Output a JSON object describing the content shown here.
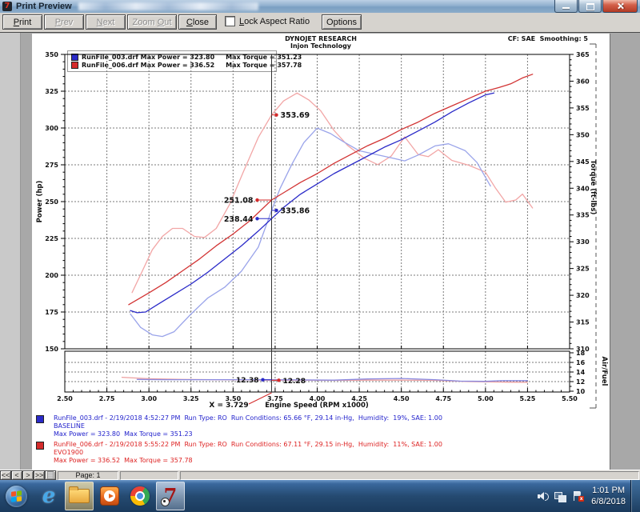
{
  "window": {
    "title": "Print Preview"
  },
  "toolbar": {
    "buttons": [
      {
        "label": "Print",
        "accel": "P",
        "disabled": false
      },
      {
        "label": "Prev",
        "accel": "P",
        "disabled": true
      },
      {
        "label": "Next",
        "accel": "N",
        "disabled": true
      },
      {
        "label": "Zoom Out",
        "accel": "O",
        "disabled": true
      },
      {
        "label": "Close",
        "accel": "C",
        "disabled": false
      },
      {
        "label": "Options",
        "accel": "O",
        "disabled": false
      }
    ],
    "lock_aspect_ratio_label": "Lock Aspect Ratio",
    "lock_aspect_ratio_checked": false
  },
  "report": {
    "header_line1": "DYNOJET RESEARCH",
    "header_line2": "Injon Technology",
    "corner_note": "CF: SAE  Smoothing: 5"
  },
  "legend": {
    "rows": [
      {
        "color": "#2a2ac8",
        "text": "RunFile_003.drf Max Power = 323.80     Max Torque = 351.23"
      },
      {
        "color": "#d42b2b",
        "text": "RunFile_006.drf Max Power = 336.52     Max Torque = 357.78"
      }
    ]
  },
  "chart_data": {
    "type": "line",
    "title": "DYNOJET RESEARCH",
    "xlabel": "Engine Speed (RPM x1000)",
    "ylabel_left": "Power (hp)",
    "ylabel_right": "Torque (ft-lbs)",
    "ylabel_af": "Air/Fuel",
    "xlim": [
      2.5,
      5.5
    ],
    "power_lim": [
      150,
      350
    ],
    "torque_lim": [
      310,
      365
    ],
    "af_lim": [
      10,
      18
    ],
    "grid": true,
    "x_ticks": [
      "2.50",
      "2.75",
      "3.00",
      "3.25",
      "3.50",
      "3.75",
      "4.00",
      "4.25",
      "4.50",
      "4.75",
      "5.00",
      "5.25",
      "5.50"
    ],
    "power_ticks": [
      150,
      175,
      200,
      225,
      250,
      275,
      300,
      325,
      350
    ],
    "torque_ticks": [
      310,
      315,
      320,
      325,
      330,
      335,
      340,
      345,
      350,
      355,
      360,
      365
    ],
    "af_ticks": [
      10,
      12,
      14,
      16,
      18
    ],
    "cursor": {
      "rpm": 3.729,
      "label": "X = 3.729"
    },
    "series": [
      {
        "name": "RunFile_006 Torque",
        "axis": "torque",
        "color": "#f2a6a6",
        "points": [
          [
            2.9,
            320.5
          ],
          [
            2.96,
            324.5
          ],
          [
            3.02,
            328.5
          ],
          [
            3.08,
            331.0
          ],
          [
            3.14,
            332.5
          ],
          [
            3.2,
            332.5
          ],
          [
            3.27,
            331.0
          ],
          [
            3.33,
            330.8
          ],
          [
            3.4,
            332.5
          ],
          [
            3.48,
            337.0
          ],
          [
            3.56,
            343.0
          ],
          [
            3.65,
            349.5
          ],
          [
            3.729,
            353.69
          ],
          [
            3.8,
            356.3
          ],
          [
            3.88,
            357.78
          ],
          [
            3.95,
            356.5
          ],
          [
            4.02,
            354.5
          ],
          [
            4.1,
            350.8
          ],
          [
            4.18,
            348.0
          ],
          [
            4.28,
            345.6
          ],
          [
            4.36,
            344.4
          ],
          [
            4.44,
            346.0
          ],
          [
            4.52,
            349.6
          ],
          [
            4.6,
            346.3
          ],
          [
            4.66,
            345.9
          ],
          [
            4.72,
            347.2
          ],
          [
            4.8,
            345.2
          ],
          [
            4.9,
            344.3
          ],
          [
            5.0,
            343.0
          ],
          [
            5.06,
            340.0
          ],
          [
            5.12,
            337.4
          ],
          [
            5.18,
            337.8
          ],
          [
            5.22,
            338.9
          ],
          [
            5.28,
            336.3
          ]
        ]
      },
      {
        "name": "RunFile_003 Torque",
        "axis": "torque",
        "color": "#9aa4ea",
        "points": [
          [
            2.89,
            316.5
          ],
          [
            2.95,
            314.0
          ],
          [
            3.02,
            312.6
          ],
          [
            3.08,
            312.3
          ],
          [
            3.15,
            313.2
          ],
          [
            3.25,
            316.5
          ],
          [
            3.35,
            319.5
          ],
          [
            3.45,
            321.5
          ],
          [
            3.55,
            324.5
          ],
          [
            3.65,
            329.0
          ],
          [
            3.729,
            335.86
          ],
          [
            3.78,
            340.0
          ],
          [
            3.85,
            344.5
          ],
          [
            3.92,
            348.5
          ],
          [
            4.0,
            351.23
          ],
          [
            4.08,
            350.2
          ],
          [
            4.15,
            348.8
          ],
          [
            4.25,
            347.0
          ],
          [
            4.35,
            346.3
          ],
          [
            4.45,
            345.6
          ],
          [
            4.52,
            345.1
          ],
          [
            4.6,
            346.2
          ],
          [
            4.7,
            347.9
          ],
          [
            4.78,
            348.3
          ],
          [
            4.88,
            347.0
          ],
          [
            4.95,
            344.8
          ],
          [
            5.03,
            340.4
          ]
        ]
      },
      {
        "name": "RunFile_006 Power",
        "axis": "power",
        "color": "#d23434",
        "points": [
          [
            2.88,
            180
          ],
          [
            3.0,
            188
          ],
          [
            3.1,
            195
          ],
          [
            3.2,
            203
          ],
          [
            3.3,
            211
          ],
          [
            3.4,
            220
          ],
          [
            3.5,
            228
          ],
          [
            3.6,
            237
          ],
          [
            3.729,
            251.08
          ],
          [
            3.8,
            256
          ],
          [
            3.9,
            263
          ],
          [
            4.0,
            269
          ],
          [
            4.1,
            276
          ],
          [
            4.2,
            282
          ],
          [
            4.3,
            288
          ],
          [
            4.4,
            293
          ],
          [
            4.5,
            299
          ],
          [
            4.6,
            304
          ],
          [
            4.7,
            310
          ],
          [
            4.8,
            315
          ],
          [
            4.9,
            320
          ],
          [
            5.0,
            325
          ],
          [
            5.08,
            327.5
          ],
          [
            5.15,
            330
          ],
          [
            5.22,
            334
          ],
          [
            5.28,
            336.52
          ]
        ]
      },
      {
        "name": "RunFile_003 Power",
        "axis": "power",
        "color": "#2a2ac8",
        "points": [
          [
            2.89,
            176
          ],
          [
            2.93,
            174.5
          ],
          [
            2.98,
            175
          ],
          [
            3.05,
            180
          ],
          [
            3.15,
            187
          ],
          [
            3.25,
            194
          ],
          [
            3.35,
            202
          ],
          [
            3.45,
            211
          ],
          [
            3.55,
            220
          ],
          [
            3.65,
            230
          ],
          [
            3.729,
            238.44
          ],
          [
            3.8,
            246
          ],
          [
            3.9,
            255
          ],
          [
            4.0,
            262
          ],
          [
            4.1,
            269
          ],
          [
            4.2,
            275
          ],
          [
            4.3,
            281
          ],
          [
            4.4,
            287
          ],
          [
            4.5,
            292
          ],
          [
            4.6,
            298
          ],
          [
            4.7,
            304
          ],
          [
            4.8,
            311
          ],
          [
            4.9,
            317
          ],
          [
            5.0,
            322.5
          ],
          [
            5.05,
            323.8
          ]
        ]
      },
      {
        "name": "RunFile_006 Air/Fuel",
        "axis": "af",
        "color": "#eda0a0",
        "points": [
          [
            2.84,
            12.9
          ],
          [
            3.0,
            12.6
          ],
          [
            3.2,
            12.45
          ],
          [
            3.4,
            12.4
          ],
          [
            3.6,
            12.35
          ],
          [
            3.729,
            12.28
          ],
          [
            3.9,
            12.3
          ],
          [
            4.1,
            12.25
          ],
          [
            4.3,
            12.3
          ],
          [
            4.5,
            12.3
          ],
          [
            4.7,
            12.25
          ],
          [
            4.9,
            12.0
          ],
          [
            5.1,
            11.9
          ],
          [
            5.25,
            11.85
          ]
        ]
      },
      {
        "name": "RunFile_003 Air/Fuel",
        "axis": "af",
        "color": "#8a8ae0",
        "points": [
          [
            2.93,
            12.45
          ],
          [
            3.1,
            12.4
          ],
          [
            3.3,
            12.4
          ],
          [
            3.5,
            12.4
          ],
          [
            3.729,
            12.38
          ],
          [
            3.9,
            12.35
          ],
          [
            4.1,
            12.3
          ],
          [
            4.3,
            12.55
          ],
          [
            4.5,
            12.65
          ],
          [
            4.7,
            12.4
          ],
          [
            4.85,
            12.1
          ],
          [
            5.0,
            12.05
          ],
          [
            5.1,
            12.2
          ],
          [
            5.25,
            12.2
          ]
        ]
      }
    ],
    "annotations": [
      {
        "label": "353.69",
        "rpm": 3.729,
        "value": 353.69,
        "axis": "torque",
        "color": "#d42b2b",
        "side": "right"
      },
      {
        "label": "335.86",
        "rpm": 3.729,
        "value": 335.86,
        "axis": "torque",
        "color": "#2a2ac8",
        "side": "right"
      },
      {
        "label": "251.08",
        "rpm": 3.729,
        "value": 251.08,
        "axis": "power",
        "color": "#d42b2b",
        "side": "left"
      },
      {
        "label": "238.44",
        "rpm": 3.729,
        "value": 238.44,
        "axis": "power",
        "color": "#2a2ac8",
        "side": "left"
      },
      {
        "label": "12.38",
        "rpm": 3.729,
        "value": 12.38,
        "axis": "af",
        "color": "#2a2ac8",
        "side": "left"
      },
      {
        "label": "12.28",
        "rpm": 3.729,
        "value": 12.28,
        "axis": "af",
        "color": "#d42b2b",
        "side": "right"
      }
    ]
  },
  "footer": {
    "runs": [
      {
        "color": "#2222cc",
        "line1": "RunFile_003.drf - 2/19/2018 4:52:27 PM  Run Type: RO  Run Conditions: 65.66 °F, 29.14 in-Hg,  Humidity:  19%, SAE: 1.00",
        "line2": "BASELINE",
        "line3": "Max Power = 323.80  Max Torque = 351.23"
      },
      {
        "color": "#dd2222",
        "line1": "RunFile_006.drf - 2/19/2018 5:55:22 PM  Run Type: RO  Run Conditions: 67.11 °F, 29.15 in-Hg,  Humidity:  11%, SAE: 1.00",
        "line2": "EVO1900",
        "line3": "Max Power = 336.52  Max Torque = 357.78"
      }
    ]
  },
  "statusbar": {
    "nav": [
      "<<",
      "<",
      ">",
      ">>"
    ],
    "page_label": "Page: 1"
  },
  "taskbar": {
    "dyno_label": "7",
    "clock": {
      "time": "1:01 PM",
      "date": "6/8/2018"
    }
  }
}
